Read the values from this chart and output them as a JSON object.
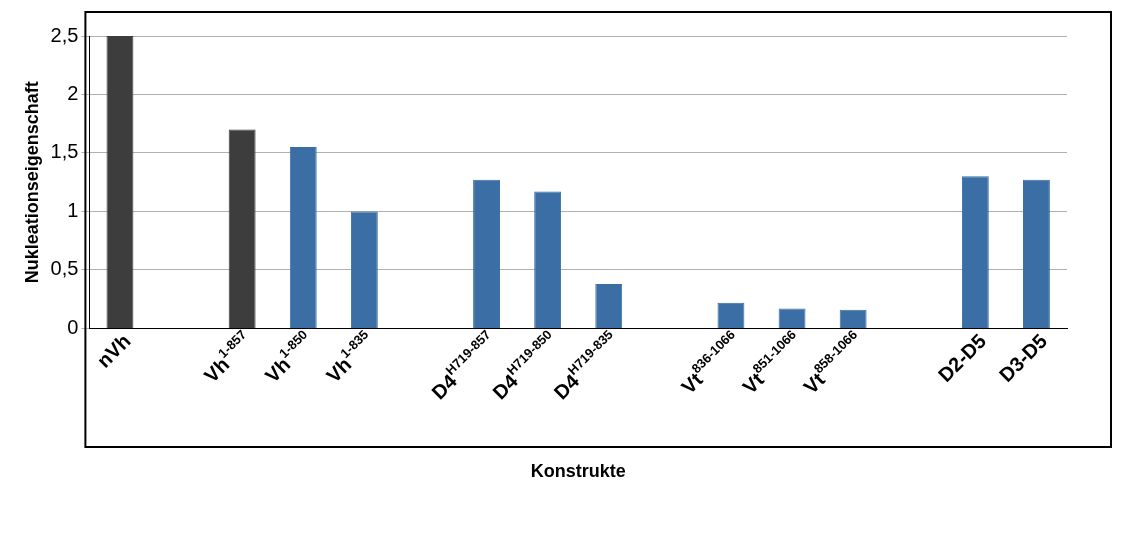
{
  "chart_data": {
    "type": "bar",
    "xlabel": "Konstrukte",
    "ylabel": "Nukleationseigenschaft",
    "categories": [
      "nVh",
      null,
      "Vh$^{1-857}$",
      "Vh$^{1-850}$",
      "Vh$^{1-835}$",
      null,
      "D4$^{H719-857}$",
      "D4$^{H719-850}$",
      "D4$^{H719-835}$",
      null,
      "Vt$^{836-1066}$",
      "Vt$^{851-1066}$",
      "Vt$^{858-1066}$",
      null,
      "D2-D5",
      "D3-D5"
    ],
    "values": [
      2.5,
      null,
      1.7,
      1.55,
      1.0,
      null,
      1.27,
      1.17,
      0.38,
      null,
      0.22,
      0.17,
      0.16,
      null,
      1.3,
      1.27
    ],
    "colors": [
      "#3d3d3d",
      null,
      "#3d3d3d",
      "#3a6ea5",
      "#3a6ea5",
      null,
      "#3a6ea5",
      "#3a6ea5",
      "#3a6ea5",
      null,
      "#3a6ea5",
      "#3a6ea5",
      "#3a6ea5",
      null,
      "#3a6ea5",
      "#3a6ea5"
    ],
    "ylim": [
      0,
      2.5
    ],
    "yticks": [
      {
        "value": 0,
        "label": "0"
      },
      {
        "value": 0.5,
        "label": "0,5"
      },
      {
        "value": 1,
        "label": "1"
      },
      {
        "value": 1.5,
        "label": "1,5"
      },
      {
        "value": 2,
        "label": "2"
      },
      {
        "value": 2.5,
        "label": "2,5"
      }
    ],
    "grid": "y"
  }
}
